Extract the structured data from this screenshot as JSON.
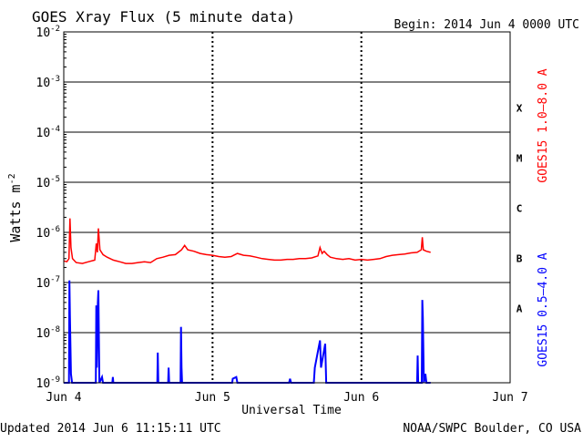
{
  "header": {
    "title": "GOES Xray Flux (5 minute data)",
    "begin": "Begin:  2014 Jun 4 0000 UTC"
  },
  "footer": {
    "updated": "Updated 2014 Jun  6 11:15:11 UTC",
    "credit": "NOAA/SWPC Boulder, CO USA"
  },
  "colors": {
    "long_channel": "#ff0000",
    "short_channel": "#0000ff",
    "axes": "#000000",
    "background": "#ffffff"
  },
  "chart_data": {
    "type": "line",
    "xlabel": "Universal Time",
    "ylabel_base": "Watts m",
    "ylabel_exponent": "-2",
    "y_scale": "log",
    "ylim": [
      1e-09,
      0.01
    ],
    "y_ticks": [
      {
        "value": 0.01,
        "base": "10",
        "exp": "-2"
      },
      {
        "value": 0.001,
        "base": "10",
        "exp": "-3"
      },
      {
        "value": 0.0001,
        "base": "10",
        "exp": "-4"
      },
      {
        "value": 1e-05,
        "base": "10",
        "exp": "-5"
      },
      {
        "value": 1e-06,
        "base": "10",
        "exp": "-6"
      },
      {
        "value": 1e-07,
        "base": "10",
        "exp": "-7"
      },
      {
        "value": 1e-08,
        "base": "10",
        "exp": "-8"
      },
      {
        "value": 1e-09,
        "base": "10",
        "exp": "-9"
      }
    ],
    "x_ticks": [
      {
        "x": "2014-06-04 00:00",
        "label": "Jun 4"
      },
      {
        "x": "2014-06-05 00:00",
        "label": "Jun 5"
      },
      {
        "x": "2014-06-06 00:00",
        "label": "Jun 6"
      },
      {
        "x": "2014-06-07 00:00",
        "label": "Jun 7"
      }
    ],
    "xlim": [
      "2014-06-04 00:00",
      "2014-06-07 00:00"
    ],
    "grid": "horizontal lines at each decade; dashed vertical lines at day boundaries",
    "flare_classes": [
      {
        "label": "X",
        "low": 0.0001,
        "high": 0.001
      },
      {
        "label": "M",
        "low": 1e-05,
        "high": 0.0001
      },
      {
        "label": "C",
        "low": 1e-06,
        "high": 1e-05
      },
      {
        "label": "B",
        "low": 1e-07,
        "high": 1e-06
      },
      {
        "label": "A",
        "low": 1e-08,
        "high": 1e-07
      }
    ],
    "series": [
      {
        "name": "GOES15 1.0–8.0 A",
        "color": "#ff0000",
        "points": [
          [
            "2014-06-04 00:00",
            2.7e-07
          ],
          [
            "2014-06-04 00:30",
            2.6e-07
          ],
          [
            "2014-06-04 00:50",
            3e-07
          ],
          [
            "2014-06-04 01:00",
            1.9e-06
          ],
          [
            "2014-06-04 01:10",
            5e-07
          ],
          [
            "2014-06-04 01:25",
            3e-07
          ],
          [
            "2014-06-04 02:00",
            2.5e-07
          ],
          [
            "2014-06-04 03:00",
            2.4e-07
          ],
          [
            "2014-06-04 04:00",
            2.6e-07
          ],
          [
            "2014-06-04 05:00",
            2.8e-07
          ],
          [
            "2014-06-04 05:15",
            6e-07
          ],
          [
            "2014-06-04 05:25",
            4e-07
          ],
          [
            "2014-06-04 05:35",
            1.2e-06
          ],
          [
            "2014-06-04 05:50",
            4.5e-07
          ],
          [
            "2014-06-04 06:20",
            3.6e-07
          ],
          [
            "2014-06-04 07:00",
            3.2e-07
          ],
          [
            "2014-06-04 08:00",
            2.8e-07
          ],
          [
            "2014-06-04 09:00",
            2.6e-07
          ],
          [
            "2014-06-04 10:00",
            2.4e-07
          ],
          [
            "2014-06-04 11:00",
            2.4e-07
          ],
          [
            "2014-06-04 12:00",
            2.5e-07
          ],
          [
            "2014-06-04 13:00",
            2.6e-07
          ],
          [
            "2014-06-04 14:00",
            2.5e-07
          ],
          [
            "2014-06-04 15:00",
            3e-07
          ],
          [
            "2014-06-04 16:00",
            3.2e-07
          ],
          [
            "2014-06-04 17:00",
            3.5e-07
          ],
          [
            "2014-06-04 18:00",
            3.6e-07
          ],
          [
            "2014-06-04 19:00",
            4.5e-07
          ],
          [
            "2014-06-04 19:30",
            5.5e-07
          ],
          [
            "2014-06-04 20:00",
            4.5e-07
          ],
          [
            "2014-06-04 21:00",
            4.2e-07
          ],
          [
            "2014-06-04 22:00",
            3.8e-07
          ],
          [
            "2014-06-04 23:00",
            3.6e-07
          ],
          [
            "2014-06-05 00:00",
            3.5e-07
          ],
          [
            "2014-06-05 01:00",
            3.3e-07
          ],
          [
            "2014-06-05 02:00",
            3.2e-07
          ],
          [
            "2014-06-05 03:00",
            3.3e-07
          ],
          [
            "2014-06-05 04:00",
            3.8e-07
          ],
          [
            "2014-06-05 05:00",
            3.5e-07
          ],
          [
            "2014-06-05 06:00",
            3.4e-07
          ],
          [
            "2014-06-05 07:00",
            3.2e-07
          ],
          [
            "2014-06-05 08:00",
            3e-07
          ],
          [
            "2014-06-05 09:00",
            2.9e-07
          ],
          [
            "2014-06-05 10:00",
            2.8e-07
          ],
          [
            "2014-06-05 11:00",
            2.8e-07
          ],
          [
            "2014-06-05 12:00",
            2.9e-07
          ],
          [
            "2014-06-05 13:00",
            2.9e-07
          ],
          [
            "2014-06-05 14:00",
            3e-07
          ],
          [
            "2014-06-05 15:00",
            3e-07
          ],
          [
            "2014-06-05 16:00",
            3.1e-07
          ],
          [
            "2014-06-05 17:00",
            3.4e-07
          ],
          [
            "2014-06-05 17:20",
            5e-07
          ],
          [
            "2014-06-05 17:40",
            3.8e-07
          ],
          [
            "2014-06-05 18:00",
            4.2e-07
          ],
          [
            "2014-06-05 18:30",
            3.6e-07
          ],
          [
            "2014-06-05 19:00",
            3.2e-07
          ],
          [
            "2014-06-05 20:00",
            3e-07
          ],
          [
            "2014-06-05 21:00",
            2.9e-07
          ],
          [
            "2014-06-05 22:00",
            3e-07
          ],
          [
            "2014-06-05 23:00",
            2.8e-07
          ],
          [
            "2014-06-06 00:00",
            2.9e-07
          ],
          [
            "2014-06-06 01:00",
            2.8e-07
          ],
          [
            "2014-06-06 02:00",
            2.9e-07
          ],
          [
            "2014-06-06 03:00",
            3e-07
          ],
          [
            "2014-06-06 04:00",
            3.3e-07
          ],
          [
            "2014-06-06 05:00",
            3.5e-07
          ],
          [
            "2014-06-06 06:00",
            3.6e-07
          ],
          [
            "2014-06-06 07:00",
            3.7e-07
          ],
          [
            "2014-06-06 08:00",
            3.9e-07
          ],
          [
            "2014-06-06 09:00",
            4e-07
          ],
          [
            "2014-06-06 09:40",
            4.5e-07
          ],
          [
            "2014-06-06 09:50",
            8e-07
          ],
          [
            "2014-06-06 10:00",
            4.5e-07
          ],
          [
            "2014-06-06 10:30",
            4.2e-07
          ],
          [
            "2014-06-06 11:10",
            4e-07
          ]
        ]
      },
      {
        "name": "GOES15 0.5–4.0 A",
        "color": "#0000ff",
        "points": [
          [
            "2014-06-04 00:00",
            1e-09
          ],
          [
            "2014-06-04 00:50",
            1e-09
          ],
          [
            "2014-06-04 00:55",
            1.1e-07
          ],
          [
            "2014-06-04 01:00",
            2e-08
          ],
          [
            "2014-06-04 01:10",
            1.5e-09
          ],
          [
            "2014-06-04 01:20",
            1e-09
          ],
          [
            "2014-06-04 05:10",
            1e-09
          ],
          [
            "2014-06-04 05:15",
            3.5e-08
          ],
          [
            "2014-06-04 05:20",
            2e-09
          ],
          [
            "2014-06-04 05:30",
            4e-08
          ],
          [
            "2014-06-04 05:35",
            7e-08
          ],
          [
            "2014-06-04 05:45",
            1e-09
          ],
          [
            "2014-06-04 06:10",
            1.3e-09
          ],
          [
            "2014-06-04 06:20",
            1e-09
          ],
          [
            "2014-06-04 07:50",
            1e-09
          ],
          [
            "2014-06-04 07:55",
            1.3e-09
          ],
          [
            "2014-06-04 08:00",
            1e-09
          ],
          [
            "2014-06-04 15:05",
            1e-09
          ],
          [
            "2014-06-04 15:10",
            4e-09
          ],
          [
            "2014-06-04 15:15",
            1e-09
          ],
          [
            "2014-06-04 16:50",
            1e-09
          ],
          [
            "2014-06-04 16:55",
            2e-09
          ],
          [
            "2014-06-04 17:00",
            1e-09
          ],
          [
            "2014-06-04 18:50",
            1e-09
          ],
          [
            "2014-06-04 18:55",
            1.3e-08
          ],
          [
            "2014-06-04 19:00",
            2e-09
          ],
          [
            "2014-06-04 19:05",
            1e-09
          ],
          [
            "2014-06-05 03:10",
            1e-09
          ],
          [
            "2014-06-05 03:15",
            1.2e-09
          ],
          [
            "2014-06-05 03:50",
            1.3e-09
          ],
          [
            "2014-06-05 04:00",
            1e-09
          ],
          [
            "2014-06-05 12:20",
            1e-09
          ],
          [
            "2014-06-05 12:30",
            1.2e-09
          ],
          [
            "2014-06-05 12:40",
            1e-09
          ],
          [
            "2014-06-05 16:20",
            1e-09
          ],
          [
            "2014-06-05 16:30",
            2e-09
          ],
          [
            "2014-06-05 17:20",
            7e-09
          ],
          [
            "2014-06-05 17:30",
            2e-09
          ],
          [
            "2014-06-05 18:10",
            6e-09
          ],
          [
            "2014-06-05 18:20",
            1e-09
          ],
          [
            "2014-06-06 09:00",
            1e-09
          ],
          [
            "2014-06-06 09:05",
            3.5e-09
          ],
          [
            "2014-06-06 09:10",
            1e-09
          ],
          [
            "2014-06-06 09:45",
            1e-09
          ],
          [
            "2014-06-06 09:50",
            4.5e-08
          ],
          [
            "2014-06-06 09:55",
            2e-08
          ],
          [
            "2014-06-06 10:05",
            1e-09
          ],
          [
            "2014-06-06 10:20",
            1.5e-09
          ],
          [
            "2014-06-06 10:30",
            1e-09
          ],
          [
            "2014-06-06 11:10",
            1e-09
          ]
        ]
      }
    ]
  }
}
